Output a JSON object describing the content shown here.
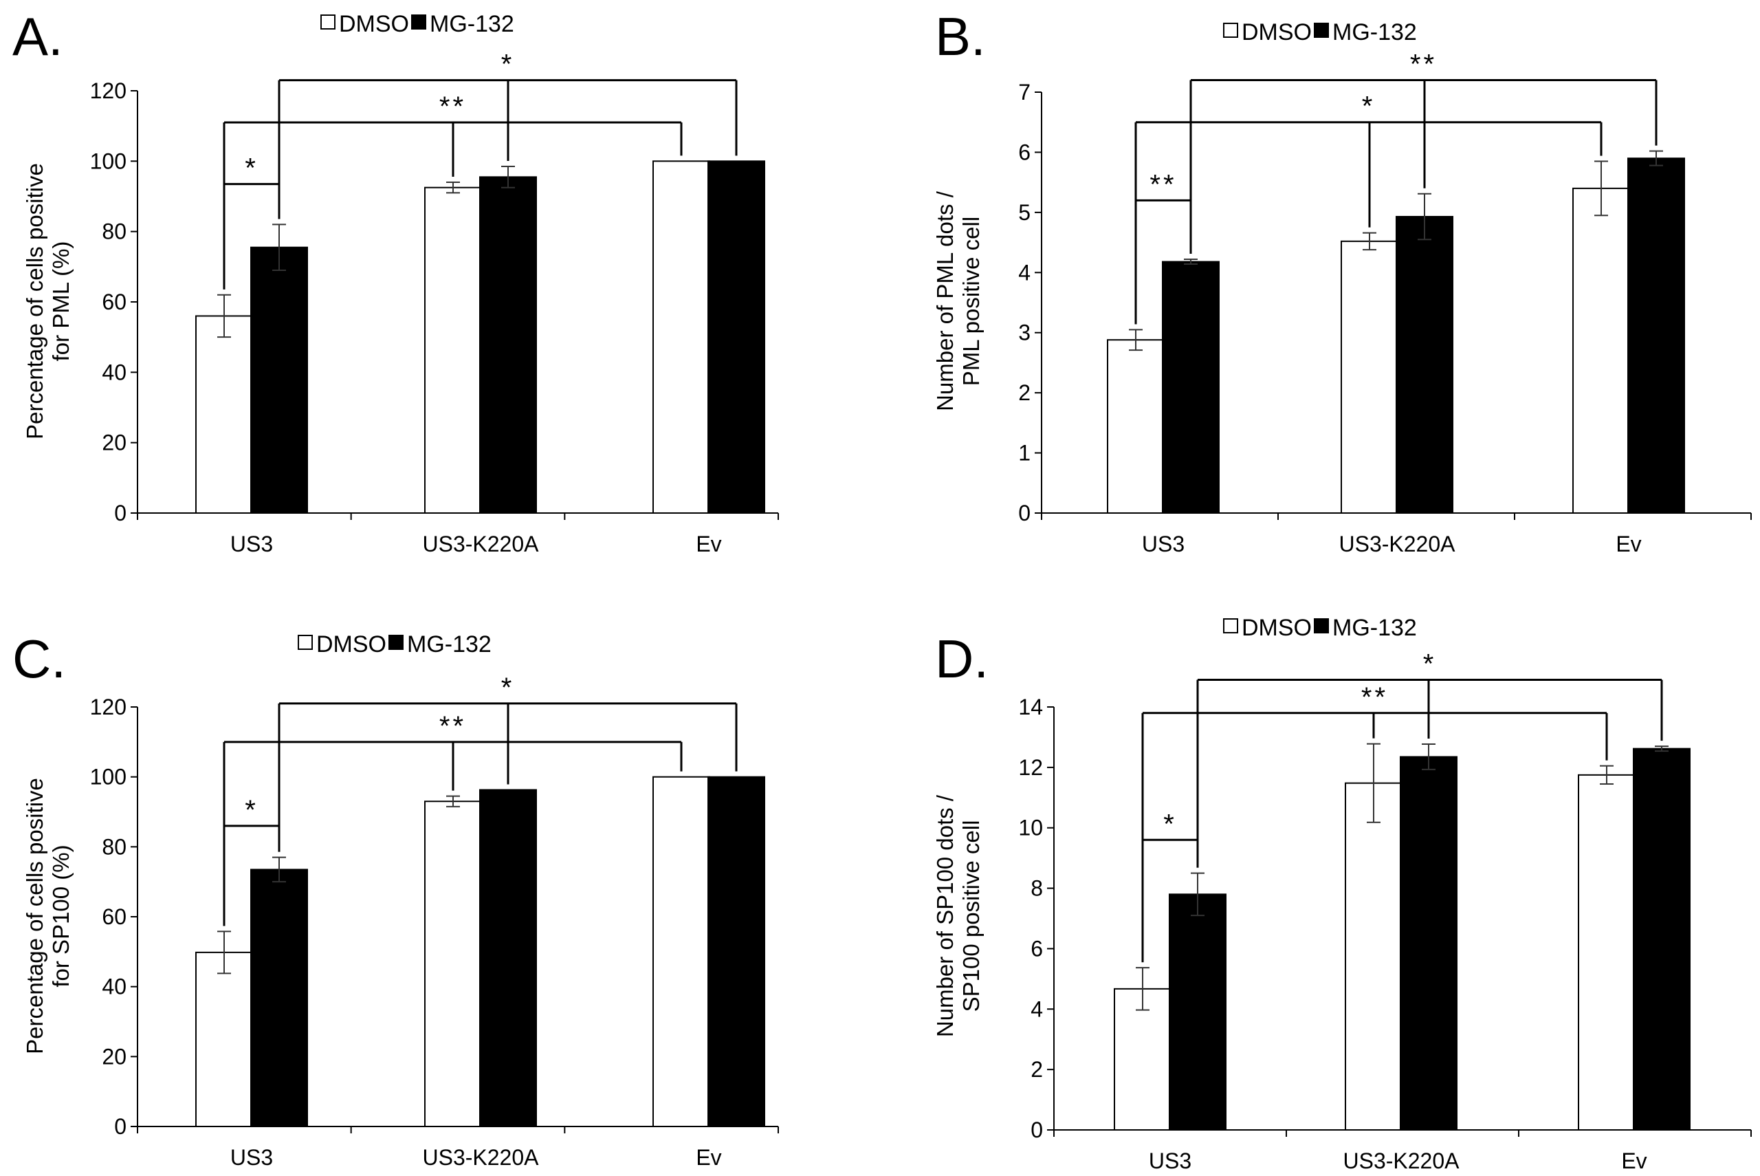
{
  "colors": {
    "dmso": "#ffffff",
    "mg132": "#000000",
    "axis": "#000000"
  },
  "chart_data": [
    {
      "panel_label": "A.",
      "type": "bar",
      "legend": [
        "DMSO",
        "MG-132"
      ],
      "categories": [
        "US3",
        "US3-K220A",
        "Ev"
      ],
      "ylabel_lines": [
        "Percentage of cells positive",
        "for PML (%)"
      ],
      "ylim": [
        0,
        120
      ],
      "ytick_step": 20,
      "series": [
        {
          "name": "DMSO",
          "values": [
            56,
            92.5,
            100
          ],
          "errors": [
            6,
            1.5,
            0
          ]
        },
        {
          "name": "MG-132",
          "values": [
            75.5,
            95.5,
            100
          ],
          "errors": [
            6.5,
            3,
            0
          ]
        }
      ],
      "significance": [
        {
          "label": "*",
          "from": [
            0,
            0
          ],
          "to": [
            0,
            1
          ],
          "level": 93.5
        },
        {
          "label": "**",
          "from": [
            0,
            0
          ],
          "to": [
            2,
            0
          ],
          "level": 111,
          "mids": [
            [
              1,
              0
            ]
          ]
        },
        {
          "label": "*",
          "from": [
            0,
            1
          ],
          "to": [
            2,
            1
          ],
          "level": 123,
          "mids": [
            [
              1,
              1
            ]
          ]
        }
      ]
    },
    {
      "panel_label": "B.",
      "type": "bar",
      "legend": [
        "DMSO",
        "MG-132"
      ],
      "categories": [
        "US3",
        "US3-K220A",
        "Ev"
      ],
      "ylabel_lines": [
        "Number of PML dots /",
        "PML positive cell"
      ],
      "ylim": [
        0,
        7
      ],
      "ytick_step": 1,
      "series": [
        {
          "name": "DMSO",
          "values": [
            2.88,
            4.52,
            5.4
          ],
          "errors": [
            0.17,
            0.14,
            0.45
          ]
        },
        {
          "name": "MG-132",
          "values": [
            4.18,
            4.93,
            5.9
          ],
          "errors": [
            0.04,
            0.38,
            0.12
          ]
        }
      ],
      "significance": [
        {
          "label": "**",
          "from": [
            0,
            0
          ],
          "to": [
            0,
            1
          ],
          "level": 5.2
        },
        {
          "label": "*",
          "from": [
            0,
            0
          ],
          "to": [
            2,
            0
          ],
          "level": 6.5,
          "mids": [
            [
              1,
              0
            ]
          ]
        },
        {
          "label": "**",
          "from": [
            0,
            1
          ],
          "to": [
            2,
            1
          ],
          "level": 7.2,
          "mids": [
            [
              1,
              1
            ]
          ]
        }
      ]
    },
    {
      "panel_label": "C.",
      "type": "bar",
      "legend": [
        "DMSO",
        "MG-132"
      ],
      "categories": [
        "US3",
        "US3-K220A",
        "Ev"
      ],
      "ylabel_lines": [
        "Percentage of cells positive",
        "for SP100 (%)"
      ],
      "ylim": [
        0,
        120
      ],
      "ytick_step": 20,
      "series": [
        {
          "name": "DMSO",
          "values": [
            49.8,
            93,
            100
          ],
          "errors": [
            6,
            1.5,
            0
          ]
        },
        {
          "name": "MG-132",
          "values": [
            73.5,
            96.3,
            100
          ],
          "errors": [
            3.5,
            0,
            0
          ]
        }
      ],
      "significance": [
        {
          "label": "*",
          "from": [
            0,
            0
          ],
          "to": [
            0,
            1
          ],
          "level": 86
        },
        {
          "label": "**",
          "from": [
            0,
            0
          ],
          "to": [
            2,
            0
          ],
          "level": 110,
          "mids": [
            [
              1,
              0
            ]
          ]
        },
        {
          "label": "*",
          "from": [
            0,
            1
          ],
          "to": [
            2,
            1
          ],
          "level": 121,
          "mids": [
            [
              1,
              1
            ]
          ]
        }
      ]
    },
    {
      "panel_label": "D.",
      "type": "bar",
      "legend": [
        "DMSO",
        "MG-132"
      ],
      "categories": [
        "US3",
        "US3-K220A",
        "Ev"
      ],
      "ylabel_lines": [
        "Number of SP100 dots /",
        "SP100 positive cell"
      ],
      "ylim": [
        0,
        14
      ],
      "ytick_step": 2,
      "series": [
        {
          "name": "DMSO",
          "values": [
            4.67,
            11.48,
            11.75
          ],
          "errors": [
            0.7,
            1.3,
            0.3
          ]
        },
        {
          "name": "MG-132",
          "values": [
            7.8,
            12.35,
            12.62
          ],
          "errors": [
            0.7,
            0.42,
            0.08
          ]
        }
      ],
      "significance": [
        {
          "label": "*",
          "from": [
            0,
            0
          ],
          "to": [
            0,
            1
          ],
          "level": 9.6
        },
        {
          "label": "**",
          "from": [
            0,
            0
          ],
          "to": [
            2,
            0
          ],
          "level": 13.8,
          "mids": [
            [
              1,
              0
            ]
          ]
        },
        {
          "label": "*",
          "from": [
            0,
            1
          ],
          "to": [
            2,
            1
          ],
          "level": 14.9,
          "mids": [
            [
              1,
              1
            ]
          ]
        }
      ]
    }
  ]
}
